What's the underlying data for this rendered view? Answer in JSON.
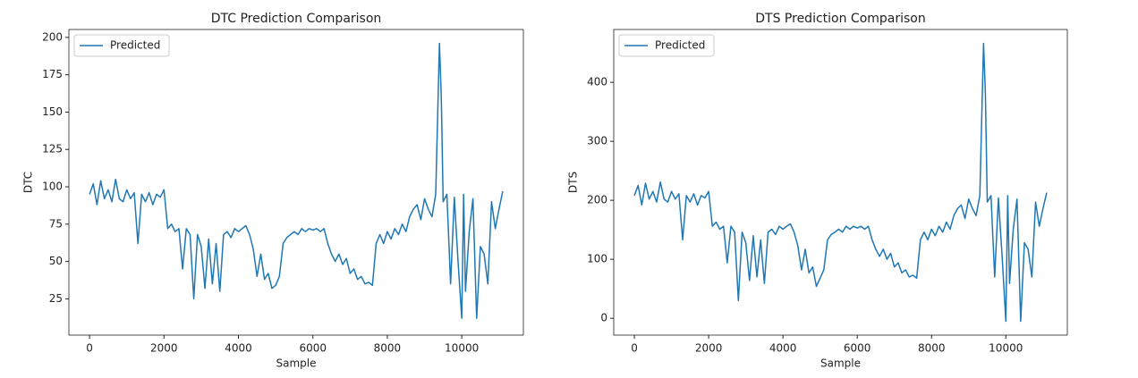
{
  "chart_data": [
    {
      "type": "line",
      "title": "DTC Prediction Comparison",
      "x_label": "Sample",
      "y_label": "DTC",
      "legend": "upper left",
      "x": [
        0,
        100,
        200,
        300,
        400,
        500,
        600,
        700,
        800,
        900,
        1000,
        1100,
        1200,
        1300,
        1400,
        1500,
        1600,
        1700,
        1800,
        1900,
        2000,
        2100,
        2200,
        2300,
        2400,
        2500,
        2600,
        2700,
        2800,
        2900,
        3000,
        3100,
        3200,
        3300,
        3400,
        3500,
        3600,
        3700,
        3800,
        3900,
        4000,
        4100,
        4200,
        4300,
        4400,
        4500,
        4600,
        4700,
        4800,
        4900,
        5000,
        5100,
        5200,
        5300,
        5400,
        5500,
        5600,
        5700,
        5800,
        5900,
        6000,
        6100,
        6200,
        6300,
        6400,
        6500,
        6600,
        6700,
        6800,
        6900,
        7000,
        7100,
        7200,
        7300,
        7400,
        7500,
        7600,
        7700,
        7800,
        7900,
        8000,
        8100,
        8200,
        8300,
        8400,
        8500,
        8600,
        8700,
        8800,
        8900,
        9000,
        9100,
        9200,
        9300,
        9400,
        9450,
        9500,
        9600,
        9700,
        9800,
        9900,
        10000,
        10050,
        10100,
        10200,
        10300,
        10400,
        10500,
        10600,
        10700,
        10800,
        10900,
        11000,
        11100
      ],
      "series": [
        {
          "name": "Predicted",
          "color": "#1f77b4",
          "values": [
            95,
            102,
            88,
            104,
            92,
            98,
            90,
            105,
            92,
            90,
            98,
            92,
            96,
            62,
            95,
            90,
            96,
            88,
            95,
            93,
            98,
            72,
            75,
            70,
            72,
            45,
            72,
            68,
            25,
            68,
            60,
            32,
            65,
            35,
            62,
            30,
            68,
            70,
            66,
            72,
            70,
            72,
            74,
            68,
            58,
            40,
            55,
            38,
            42,
            32,
            34,
            40,
            62,
            66,
            68,
            70,
            68,
            72,
            70,
            72,
            71,
            72,
            70,
            72,
            62,
            55,
            50,
            55,
            48,
            52,
            42,
            45,
            38,
            40,
            35,
            36,
            34,
            62,
            68,
            62,
            70,
            65,
            72,
            68,
            75,
            70,
            80,
            85,
            88,
            78,
            92,
            85,
            80,
            95,
            196,
            160,
            90,
            95,
            35,
            93,
            50,
            12,
            95,
            30,
            70,
            92,
            12,
            60,
            55,
            35,
            90,
            72,
            85,
            97
          ]
        }
      ],
      "xlim": [
        -555,
        11655
      ],
      "ylim": [
        0.7,
        205.3
      ],
      "xticks": [
        0,
        2000,
        4000,
        6000,
        8000,
        10000
      ],
      "yticks": [
        25,
        50,
        75,
        100,
        125,
        150,
        175,
        200
      ]
    },
    {
      "type": "line",
      "title": "DTS Prediction Comparison",
      "x_label": "Sample",
      "y_label": "DTS",
      "legend": "upper left",
      "x": [
        0,
        100,
        200,
        300,
        400,
        500,
        600,
        700,
        800,
        900,
        1000,
        1100,
        1200,
        1300,
        1400,
        1500,
        1600,
        1700,
        1800,
        1900,
        2000,
        2100,
        2200,
        2300,
        2400,
        2500,
        2600,
        2700,
        2800,
        2900,
        3000,
        3100,
        3200,
        3300,
        3400,
        3500,
        3600,
        3700,
        3800,
        3900,
        4000,
        4100,
        4200,
        4300,
        4400,
        4500,
        4600,
        4700,
        4800,
        4900,
        5000,
        5100,
        5200,
        5300,
        5400,
        5500,
        5600,
        5700,
        5800,
        5900,
        6000,
        6100,
        6200,
        6300,
        6400,
        6500,
        6600,
        6700,
        6800,
        6900,
        7000,
        7100,
        7200,
        7300,
        7400,
        7500,
        7600,
        7700,
        7800,
        7900,
        8000,
        8100,
        8200,
        8300,
        8400,
        8500,
        8600,
        8700,
        8800,
        8900,
        9000,
        9100,
        9200,
        9300,
        9400,
        9450,
        9500,
        9600,
        9700,
        9800,
        9900,
        10000,
        10050,
        10100,
        10200,
        10300,
        10400,
        10500,
        10600,
        10700,
        10800,
        10900,
        11000,
        11100
      ],
      "series": [
        {
          "name": "Predicted",
          "color": "#1f77b4",
          "values": [
            208,
            225,
            192,
            229,
            202,
            215,
            197,
            231,
            202,
            197,
            215,
            202,
            211,
            133,
            208,
            197,
            211,
            192,
            208,
            204,
            215,
            156,
            163,
            151,
            156,
            94,
            156,
            146,
            30,
            146,
            128,
            64,
            140,
            70,
            133,
            59,
            146,
            151,
            142,
            156,
            151,
            156,
            160,
            146,
            123,
            82,
            117,
            77,
            87,
            54,
            68,
            82,
            133,
            142,
            146,
            151,
            146,
            156,
            151,
            156,
            153,
            156,
            151,
            156,
            133,
            117,
            105,
            117,
            100,
            110,
            87,
            94,
            77,
            82,
            70,
            73,
            68,
            133,
            146,
            133,
            151,
            140,
            156,
            146,
            163,
            151,
            174,
            186,
            192,
            169,
            202,
            186,
            174,
            208,
            466,
            380,
            197,
            208,
            70,
            204,
            105,
            -5,
            208,
            59,
            151,
            202,
            -5,
            128,
            117,
            70,
            197,
            156,
            186,
            213
          ]
        }
      ],
      "xlim": [
        -555,
        11655
      ],
      "ylim": [
        -28.5,
        489.5
      ],
      "xticks": [
        0,
        2000,
        4000,
        6000,
        8000,
        10000
      ],
      "yticks": [
        0,
        100,
        200,
        300,
        400
      ]
    }
  ]
}
